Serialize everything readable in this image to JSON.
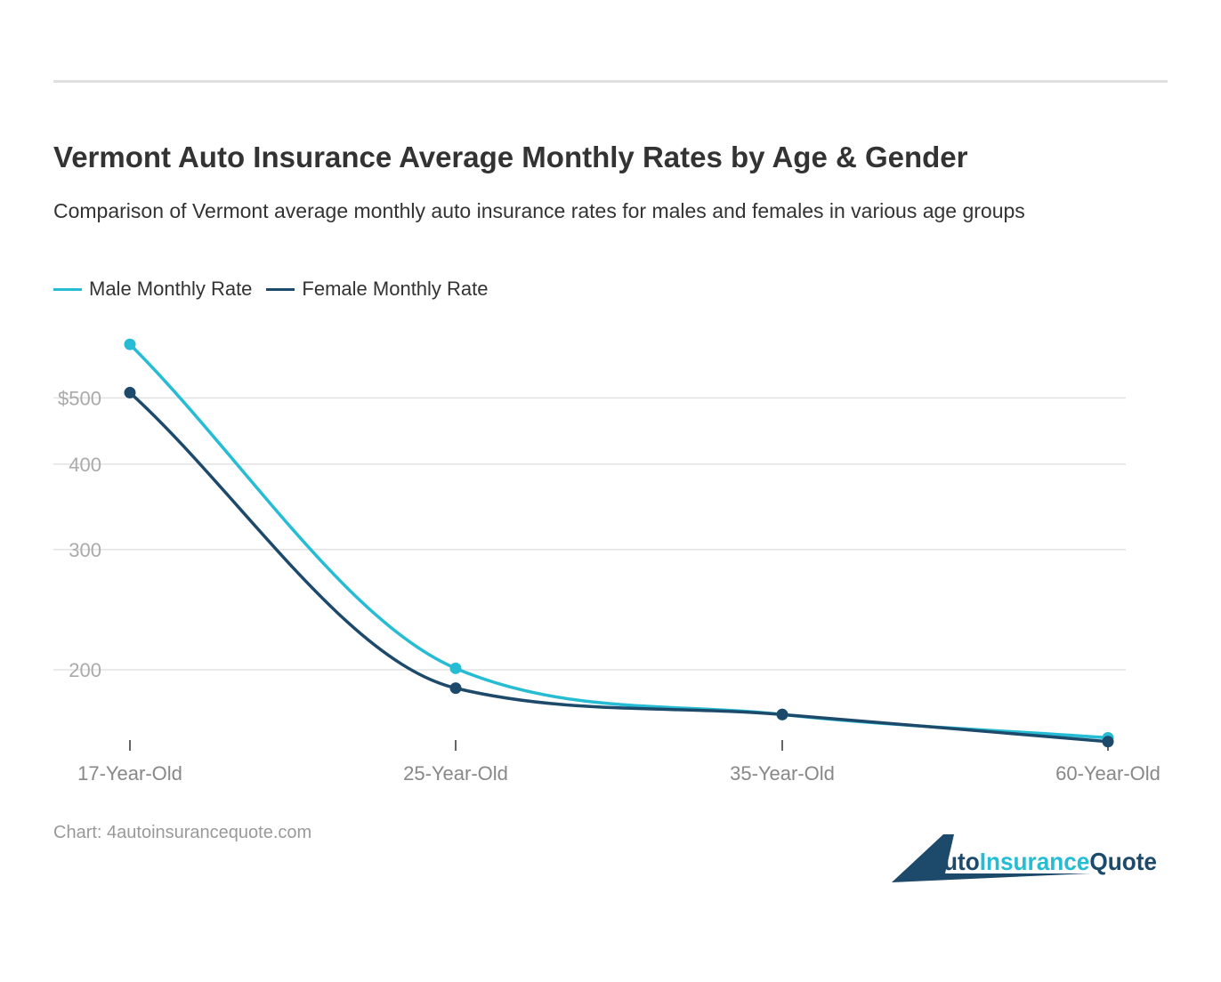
{
  "title": "Vermont Auto Insurance Average Monthly Rates by Age & Gender",
  "subtitle": "Comparison of Vermont average monthly auto insurance rates for males and females in various age groups",
  "source": "Chart: 4autoinsurancequote.com",
  "logo_text": "4AutoInsuranceQuote",
  "chart_data": {
    "type": "line",
    "categories": [
      "17-Year-Old",
      "25-Year-Old",
      "35-Year-Old",
      "60-Year-Old"
    ],
    "y_scale": "log",
    "yticks": [
      200,
      300,
      400,
      500
    ],
    "ytick_labels": [
      "200",
      "300",
      "400",
      "$500"
    ],
    "grid": true,
    "legend_placement": "top-left",
    "series": [
      {
        "name": "Male Monthly Rate",
        "color": "#26bcd3",
        "values": [
          599,
          201,
          172,
          159
        ]
      },
      {
        "name": "Female Monthly Rate",
        "color": "#1d4a6b",
        "values": [
          509,
          188,
          172,
          157
        ]
      }
    ]
  }
}
